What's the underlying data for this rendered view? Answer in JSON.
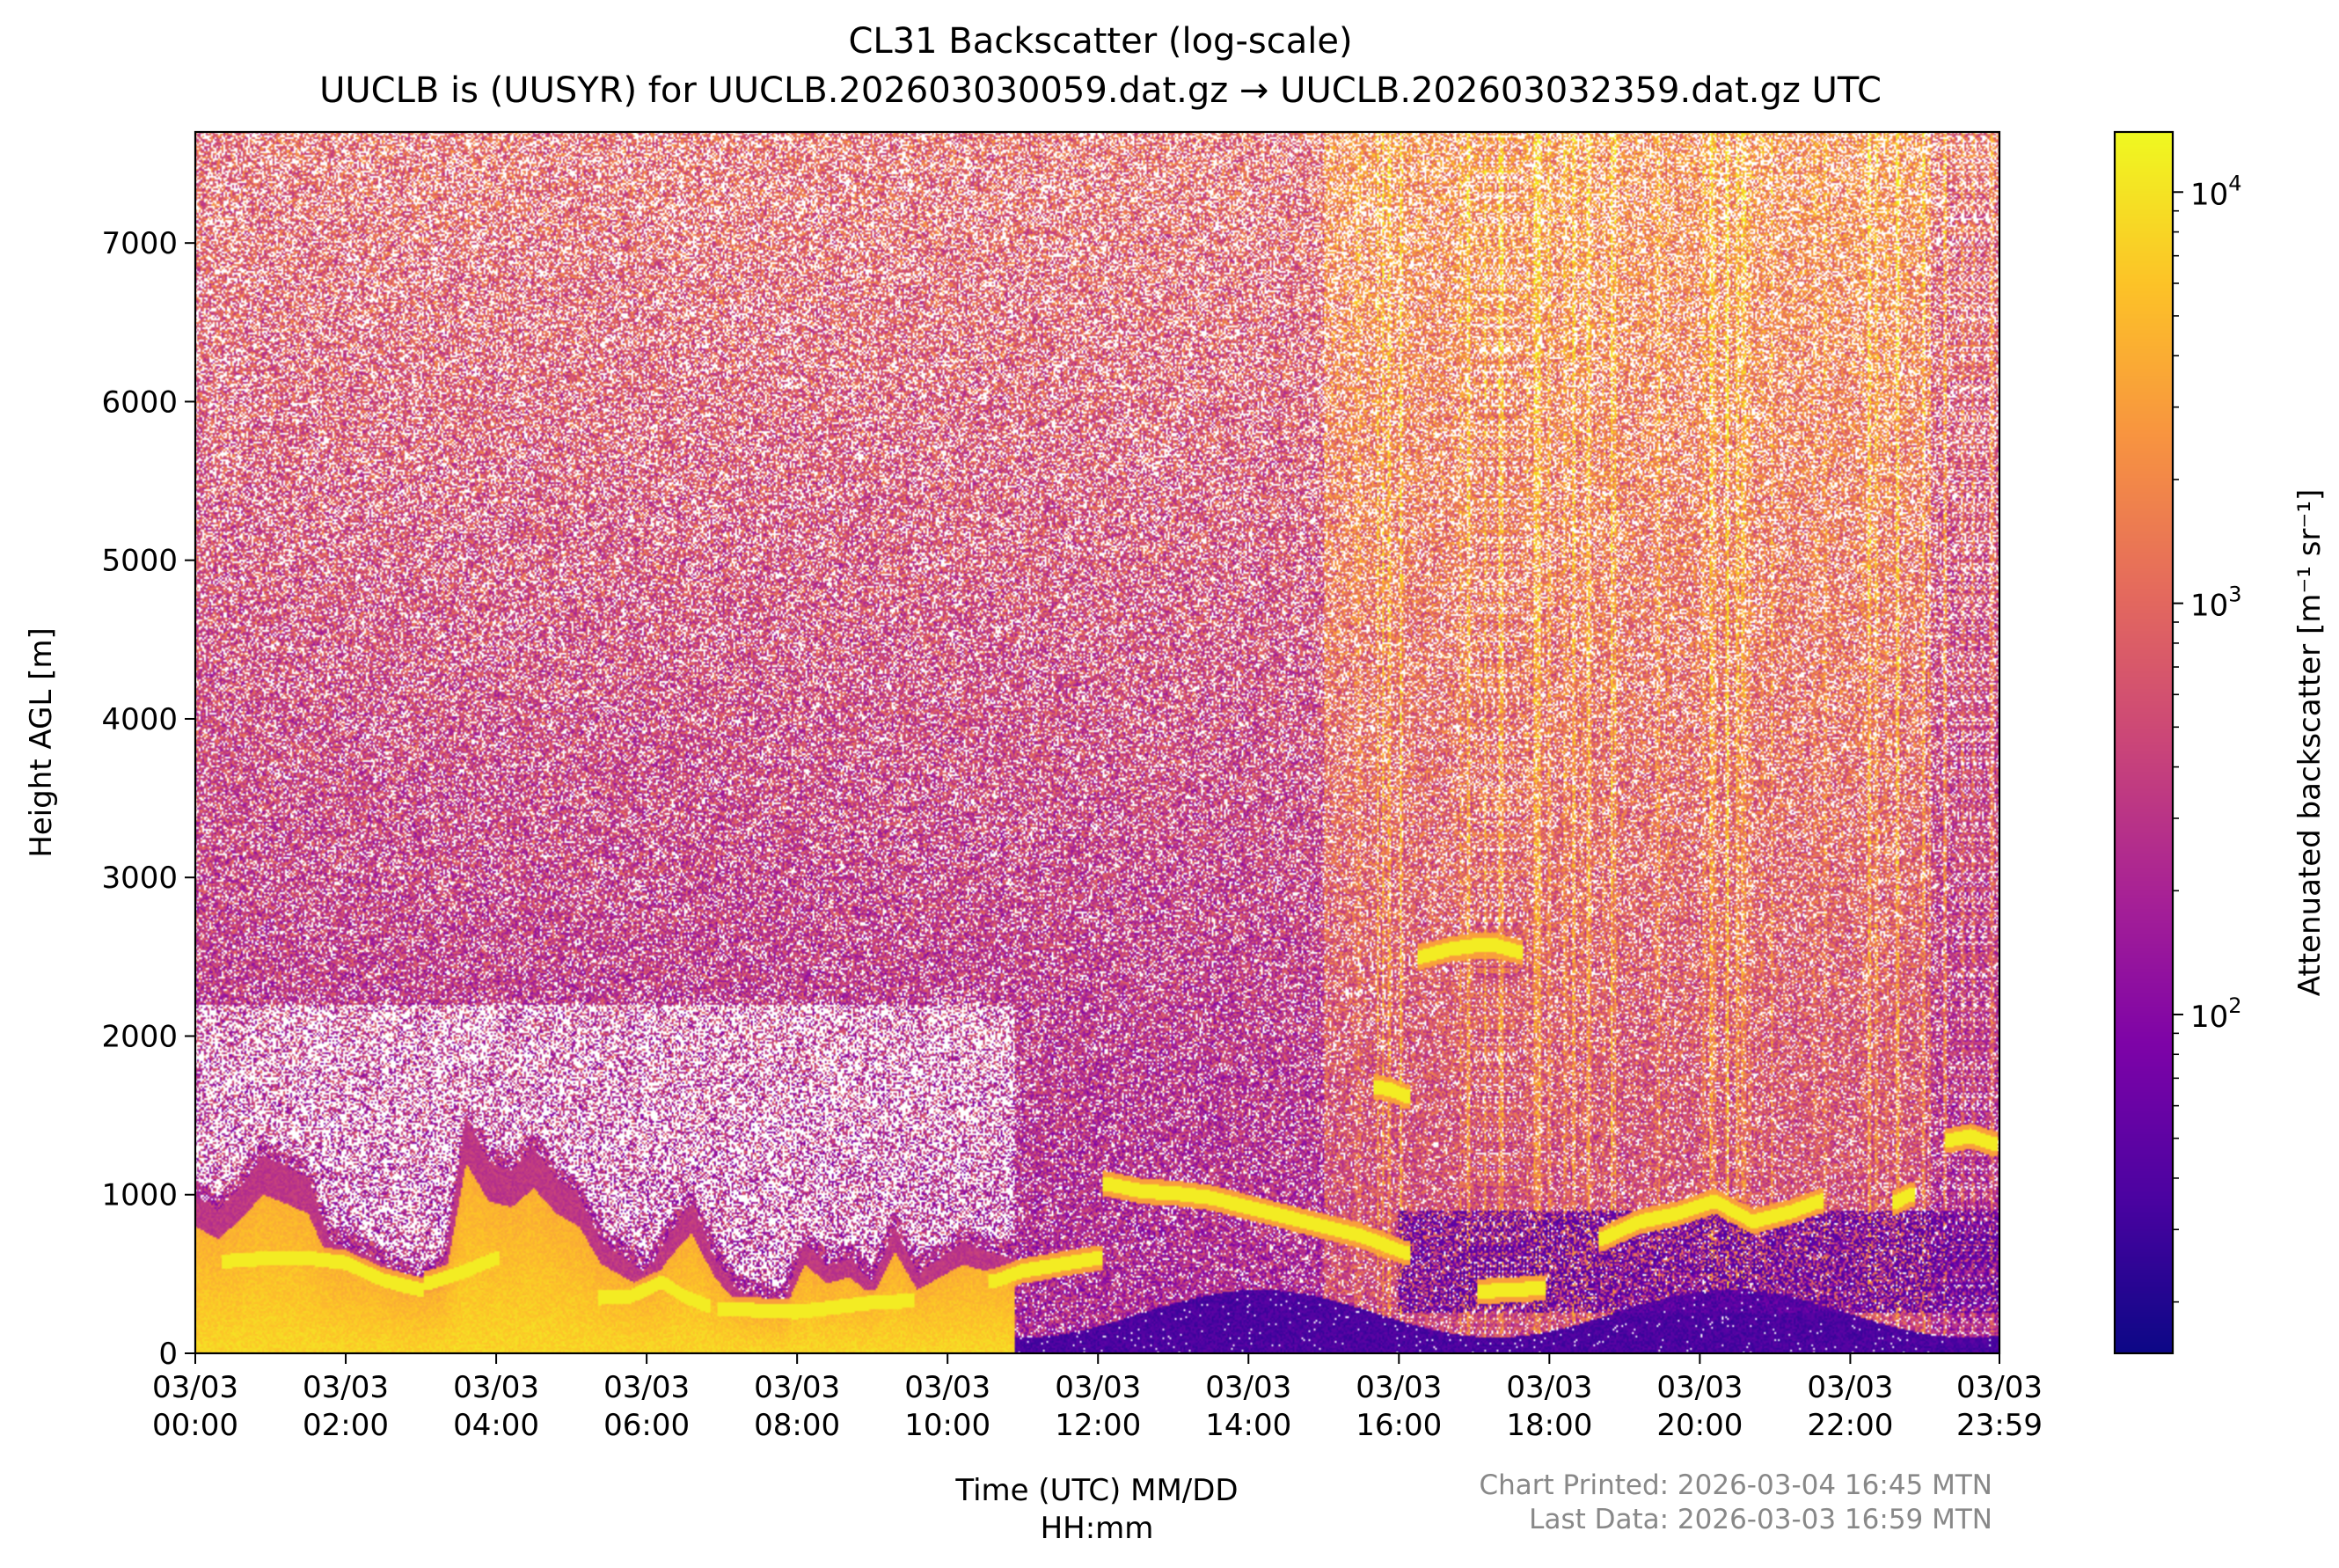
{
  "chart_data": {
    "type": "heatmap",
    "title": "CL31 Backscatter (log-scale)",
    "subtitle": "UUCLB is (UUSYR) for UUCLB.202603030059.dat.gz → UUCLB.202603032359.dat.gz UTC",
    "xlabel_line1": "Time (UTC) MM/DD",
    "xlabel_line2": "HH:mm",
    "ylabel": "Height AGL [m]",
    "colorbar_label": "Attenuated backscatter [m⁻¹ sr⁻¹]",
    "colormap": "plasma",
    "scale": "log",
    "xlim_hours": [
      0,
      23.983
    ],
    "ylim": [
      0,
      7700
    ],
    "clim": [
      15,
      14000
    ],
    "x_ticks": [
      {
        "hour": 0,
        "date": "03/03",
        "time": "00:00"
      },
      {
        "hour": 2,
        "date": "03/03",
        "time": "02:00"
      },
      {
        "hour": 4,
        "date": "03/03",
        "time": "04:00"
      },
      {
        "hour": 6,
        "date": "03/03",
        "time": "06:00"
      },
      {
        "hour": 8,
        "date": "03/03",
        "time": "08:00"
      },
      {
        "hour": 10,
        "date": "03/03",
        "time": "10:00"
      },
      {
        "hour": 12,
        "date": "03/03",
        "time": "12:00"
      },
      {
        "hour": 14,
        "date": "03/03",
        "time": "14:00"
      },
      {
        "hour": 16,
        "date": "03/03",
        "time": "16:00"
      },
      {
        "hour": 18,
        "date": "03/03",
        "time": "18:00"
      },
      {
        "hour": 20,
        "date": "03/03",
        "time": "20:00"
      },
      {
        "hour": 22,
        "date": "03/03",
        "time": "22:00"
      },
      {
        "hour": 23.983,
        "date": "03/03",
        "time": "23:59"
      }
    ],
    "y_ticks": [
      0,
      1000,
      2000,
      3000,
      4000,
      5000,
      6000,
      7000
    ],
    "colorbar_ticks": [
      {
        "value": 100,
        "base": "10",
        "exp": "2"
      },
      {
        "value": 1000,
        "base": "10",
        "exp": "3"
      },
      {
        "value": 10000,
        "base": "10",
        "exp": "4"
      }
    ],
    "cloud_base_layers": [
      {
        "t": [
          0.4,
          1.0,
          1.5,
          2.0,
          2.5,
          3.0
        ],
        "h": [
          580,
          600,
          600,
          570,
          460,
          400
        ]
      },
      {
        "t": [
          3.1,
          3.6,
          4.0
        ],
        "h": [
          440,
          520,
          600
        ]
      },
      {
        "t": [
          5.4,
          5.8,
          6.2,
          6.5,
          6.8
        ],
        "h": [
          350,
          360,
          450,
          360,
          300
        ]
      },
      {
        "t": [
          7.0,
          7.5,
          8.0,
          8.5,
          9.0,
          9.5
        ],
        "h": [
          280,
          270,
          260,
          290,
          320,
          330
        ]
      },
      {
        "t": [
          10.6,
          11.0,
          11.5,
          12.0
        ],
        "h": [
          450,
          520,
          560,
          600
        ]
      },
      {
        "t": [
          12.1,
          12.6,
          13.0,
          13.5,
          14.0,
          14.5,
          15.0,
          15.5,
          16.1
        ],
        "h": [
          1070,
          1020,
          1010,
          980,
          920,
          860,
          800,
          740,
          630
        ]
      },
      {
        "t": [
          16.3,
          16.7,
          17.0,
          17.3,
          17.6
        ],
        "h": [
          2500,
          2550,
          2570,
          2570,
          2530
        ]
      },
      {
        "t": [
          15.7,
          15.9,
          16.1
        ],
        "h": [
          1680,
          1660,
          1620
        ]
      },
      {
        "t": [
          17.1,
          17.5,
          17.9
        ],
        "h": [
          390,
          400,
          410
        ]
      },
      {
        "t": [
          18.7,
          19.2,
          19.7,
          20.2,
          20.7,
          21.2,
          21.6
        ],
        "h": [
          720,
          830,
          880,
          960,
          830,
          890,
          960
        ]
      },
      {
        "t": [
          22.6,
          22.8
        ],
        "h": [
          950,
          1000
        ]
      },
      {
        "t": [
          23.3,
          23.6,
          23.9
        ],
        "h": [
          1340,
          1370,
          1320
        ]
      }
    ],
    "dense_aerosol_top": {
      "t": [
        0.0,
        0.3,
        0.6,
        0.9,
        1.2,
        1.5,
        1.8,
        2.1,
        2.4,
        2.7,
        3.0,
        3.3,
        3.6,
        3.9,
        4.2,
        4.5,
        4.8,
        5.1,
        5.4,
        5.7,
        6.0,
        6.3,
        6.6,
        6.9,
        7.2,
        7.5,
        7.8,
        8.1,
        8.4,
        8.7,
        9.0,
        9.3,
        9.6,
        9.9,
        10.2,
        10.5,
        10.8
      ],
      "h": [
        1000,
        900,
        1050,
        1250,
        1180,
        1100,
        700,
        650,
        600,
        500,
        450,
        520,
        1500,
        1200,
        1150,
        1300,
        1100,
        1000,
        700,
        600,
        500,
        750,
        950,
        600,
        400,
        350,
        300,
        700,
        550,
        600,
        450,
        800,
        500,
        600,
        700,
        650,
        600
      ]
    }
  },
  "footer": {
    "printed": "Chart Printed: 2026-03-04 16:45 MTN",
    "last_data": "Last Data: 2026-03-03 16:59 MTN"
  }
}
